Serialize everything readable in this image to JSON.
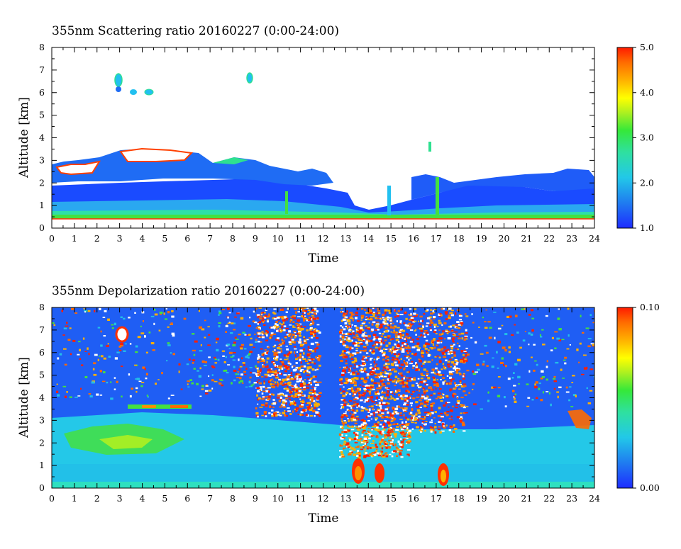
{
  "chart_data": [
    {
      "type": "heatmap",
      "title": "355nm Scattering ratio  20160227 (0:00-24:00)",
      "xlabel": "Time",
      "ylabel": "Altitude [km]",
      "xlim": [
        0,
        24
      ],
      "ylim": [
        0,
        8
      ],
      "x_ticks": [
        "0",
        "1",
        "2",
        "3",
        "4",
        "5",
        "6",
        "7",
        "8",
        "9",
        "10",
        "11",
        "12",
        "13",
        "14",
        "15",
        "16",
        "17",
        "18",
        "19",
        "20",
        "21",
        "22",
        "23",
        "24"
      ],
      "y_ticks": [
        "0",
        "1",
        "2",
        "3",
        "4",
        "5",
        "6",
        "7",
        "8"
      ],
      "colorbar": {
        "range": [
          1.0,
          5.0
        ],
        "ticks": [
          "1.0",
          "2.0",
          "3.0",
          "4.0",
          "5.0"
        ]
      },
      "colors": {
        "low": "#1e2cff",
        "mid": "#2ef060",
        "high": "#ff2000",
        "saturated": "#ffffff"
      }
    },
    {
      "type": "heatmap",
      "title": "355nm Depolarization ratio  20160227 (0:00-24:00)",
      "xlabel": "Time",
      "ylabel": "Altitude [km]",
      "xlim": [
        0,
        24
      ],
      "ylim": [
        0,
        8
      ],
      "x_ticks": [
        "0",
        "1",
        "2",
        "3",
        "4",
        "5",
        "6",
        "7",
        "8",
        "9",
        "10",
        "11",
        "12",
        "13",
        "14",
        "15",
        "16",
        "17",
        "18",
        "19",
        "20",
        "21",
        "22",
        "23",
        "24"
      ],
      "y_ticks": [
        "0",
        "1",
        "2",
        "3",
        "4",
        "5",
        "6",
        "7",
        "8"
      ],
      "colorbar": {
        "range": [
          0.0,
          0.1
        ],
        "ticks": [
          "0.00",
          "0.10"
        ]
      },
      "colors": {
        "low": "#1e2cff",
        "mid": "#2ef060",
        "high": "#ff2000",
        "saturated": "#ffffff"
      }
    }
  ]
}
